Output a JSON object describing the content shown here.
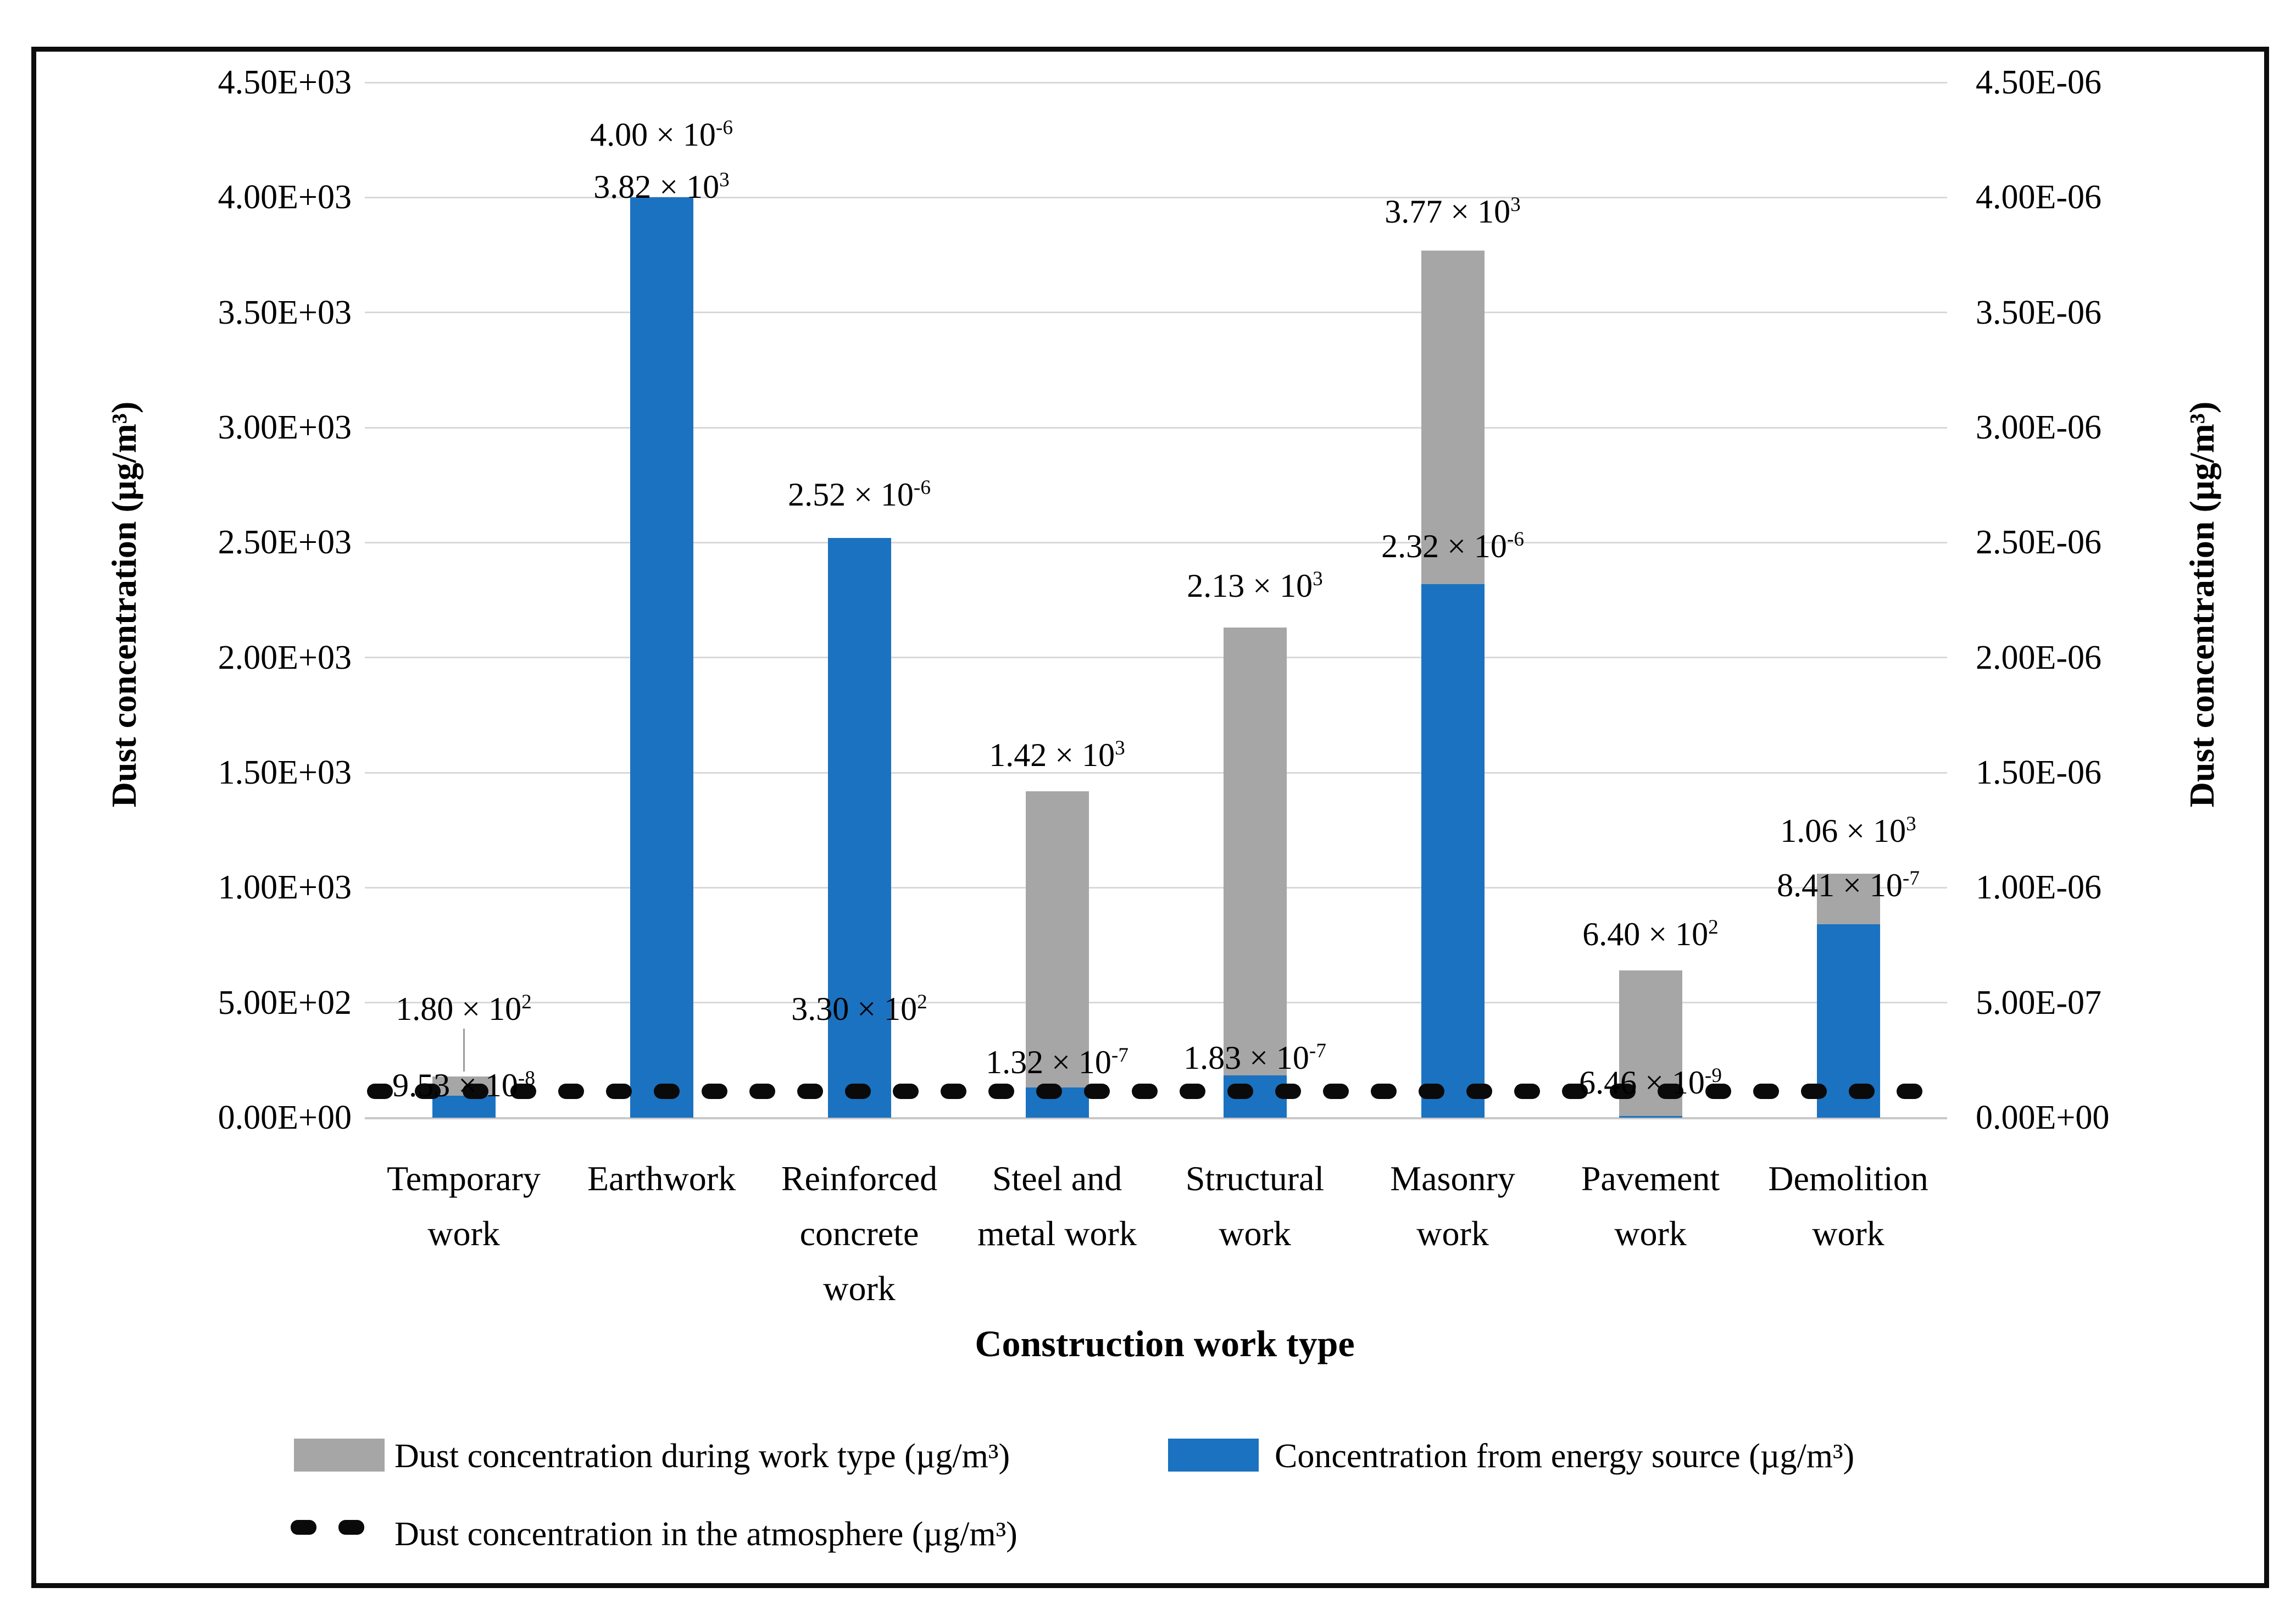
{
  "colors": {
    "work_dust_gray": "#a6a6a6",
    "energy_blue": "#1b72c0",
    "atmosphere_dash_black": "#0a0a0a",
    "gridline_gray": "#d9d9d9"
  },
  "chart_data": {
    "type": "bar",
    "title": "",
    "xlabel": "Construction work type",
    "grid": true,
    "legend_position": "bottom",
    "left_axis": {
      "label": "Dust concentration (µg/m³)",
      "min": 0,
      "max": 4500,
      "ticks": [
        "4.50E+03",
        "4.00E+03",
        "3.50E+03",
        "3.00E+03",
        "2.50E+03",
        "2.00E+03",
        "1.50E+03",
        "1.00E+03",
        "5.00E+02",
        "0.00E+00"
      ]
    },
    "right_axis": {
      "label": "Dust concentration (µg/m³)",
      "min": 0,
      "max": 4.5e-06,
      "ticks": [
        "4.50E-06",
        "4.00E-06",
        "3.50E-06",
        "3.00E-06",
        "2.50E-06",
        "2.00E-06",
        "1.50E-06",
        "1.00E-06",
        "5.00E-07",
        "0.00E+00"
      ]
    },
    "categories": [
      [
        "Temporary",
        "work"
      ],
      [
        "Earthwork"
      ],
      [
        "Reinforced",
        "concrete",
        "work"
      ],
      [
        "Steel and",
        "metal work"
      ],
      [
        "Structural",
        "work"
      ],
      [
        "Masonry",
        "work"
      ],
      [
        "Pavement",
        "work"
      ],
      [
        "Demolition",
        "work"
      ]
    ],
    "series": [
      {
        "name": "Dust concentration during work type (µg/m³)",
        "axis": "left",
        "style": "gray-bar",
        "values": [
          180,
          3820,
          330,
          1420,
          2130,
          3770,
          640,
          1060
        ]
      },
      {
        "name": "Concentration from energy source (µg/m³)",
        "axis": "right",
        "style": "blue-bar",
        "values": [
          9.53e-08,
          4e-06,
          2.52e-06,
          1.32e-07,
          1.83e-07,
          2.32e-06,
          6.46e-09,
          8.41e-07
        ]
      }
    ],
    "atmosphere_line": {
      "name": "Dust concentration in the atmosphere (µg/m³)",
      "style": "black-dashed-line",
      "value": "near zero, drawn just above the 0.00E+00 baseline across all categories"
    },
    "data_labels": [
      {
        "work": {
          "text": "1.80 × 10",
          "sup": "2",
          "y": 1686
        },
        "energy": {
          "text": "9.53 × 10",
          "sup": "-8",
          "y": 1825
        },
        "leader": {
          "y1": 1722,
          "y2": 1800
        }
      },
      {
        "work": {
          "text": "3.82 × 10",
          "sup": "3",
          "y": 190
        },
        "energy": {
          "text": "4.00 × 10",
          "sup": "-6",
          "y": 95
        }
      },
      {
        "work": {
          "text": "3.30 × 10",
          "sup": "2",
          "y": 1686
        },
        "energy": {
          "text": "2.52 × 10",
          "sup": "-6",
          "y": 750
        }
      },
      {
        "work": {
          "text": "1.42 × 10",
          "sup": "3",
          "y": 1224
        },
        "energy": {
          "text": "1.32 × 10",
          "sup": "-7",
          "y": 1783
        }
      },
      {
        "work": {
          "text": "2.13 × 10",
          "sup": "3",
          "y": 916
        },
        "energy": {
          "text": "1.83 × 10",
          "sup": "-7",
          "y": 1775
        }
      },
      {
        "work": {
          "text": "3.77 × 10",
          "sup": "3",
          "y": 235
        },
        "energy": {
          "text": "2.32 × 10",
          "sup": "-6",
          "y": 844
        }
      },
      {
        "work": {
          "text": "6.40 × 10",
          "sup": "2",
          "y": 1550
        },
        "energy": {
          "text": "6.46 × 10",
          "sup": "-9",
          "y": 1820
        }
      },
      {
        "work": {
          "text": "1.06 × 10",
          "sup": "3",
          "y": 1362
        },
        "energy": {
          "text": "8.41 × 10",
          "sup": "-7",
          "y": 1461
        }
      }
    ]
  }
}
